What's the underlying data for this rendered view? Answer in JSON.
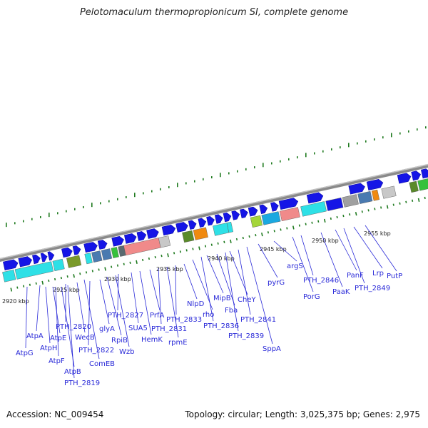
{
  "title": "Pelotomaculum thermopropionicum SI, complete genome",
  "footer": {
    "accession": "Accession: NC_009454",
    "topology": "Topology: circular; Length: 3,025,375 bp; Genes: 2,975"
  },
  "colors": {
    "gene_label": "#2a2ad8",
    "tick_mark": "#1f7a1f",
    "backbone": "#8a8a8a",
    "forward_gene": "#1515e6",
    "reverse_gene": "#2ee0e6"
  },
  "kbp_ticks": [
    {
      "label": "2920 kbp"
    },
    {
      "label": "2925 kbp"
    },
    {
      "label": "2930 kbp"
    },
    {
      "label": "2935 kbp"
    },
    {
      "label": "2940 kbp"
    },
    {
      "label": "2945 kbp"
    },
    {
      "label": "2950 kbp"
    },
    {
      "label": "2955 kbp"
    }
  ],
  "gene_labels": [
    {
      "label": "AtpG"
    },
    {
      "label": "AtpA"
    },
    {
      "label": "AtpH"
    },
    {
      "label": "AtpE"
    },
    {
      "label": "AtpF"
    },
    {
      "label": "AtpB"
    },
    {
      "label": "PTH_2819"
    },
    {
      "label": "PTH_2820"
    },
    {
      "label": "WecB"
    },
    {
      "label": "ComEB"
    },
    {
      "label": "PTH_2822"
    },
    {
      "label": "glyA"
    },
    {
      "label": "RpiB"
    },
    {
      "label": "Wzb"
    },
    {
      "label": "PTH_2827"
    },
    {
      "label": "SUA5"
    },
    {
      "label": "HemK"
    },
    {
      "label": "PrfA"
    },
    {
      "label": "PTH_2831"
    },
    {
      "label": "rpmE"
    },
    {
      "label": "PTH_2833"
    },
    {
      "label": "NlpD"
    },
    {
      "label": "rho"
    },
    {
      "label": "PTH_2836"
    },
    {
      "label": "MipB"
    },
    {
      "label": "Fba"
    },
    {
      "label": "PTH_2839"
    },
    {
      "label": "CheY"
    },
    {
      "label": "PTH_2841"
    },
    {
      "label": "SppA"
    },
    {
      "label": "pyrG"
    },
    {
      "label": "argS"
    },
    {
      "label": "PorG"
    },
    {
      "label": "PTH_2846"
    },
    {
      "label": "PaaK"
    },
    {
      "label": "PanF"
    },
    {
      "label": "PTH_2849"
    },
    {
      "label": "Lrp"
    },
    {
      "label": "PutP"
    }
  ]
}
